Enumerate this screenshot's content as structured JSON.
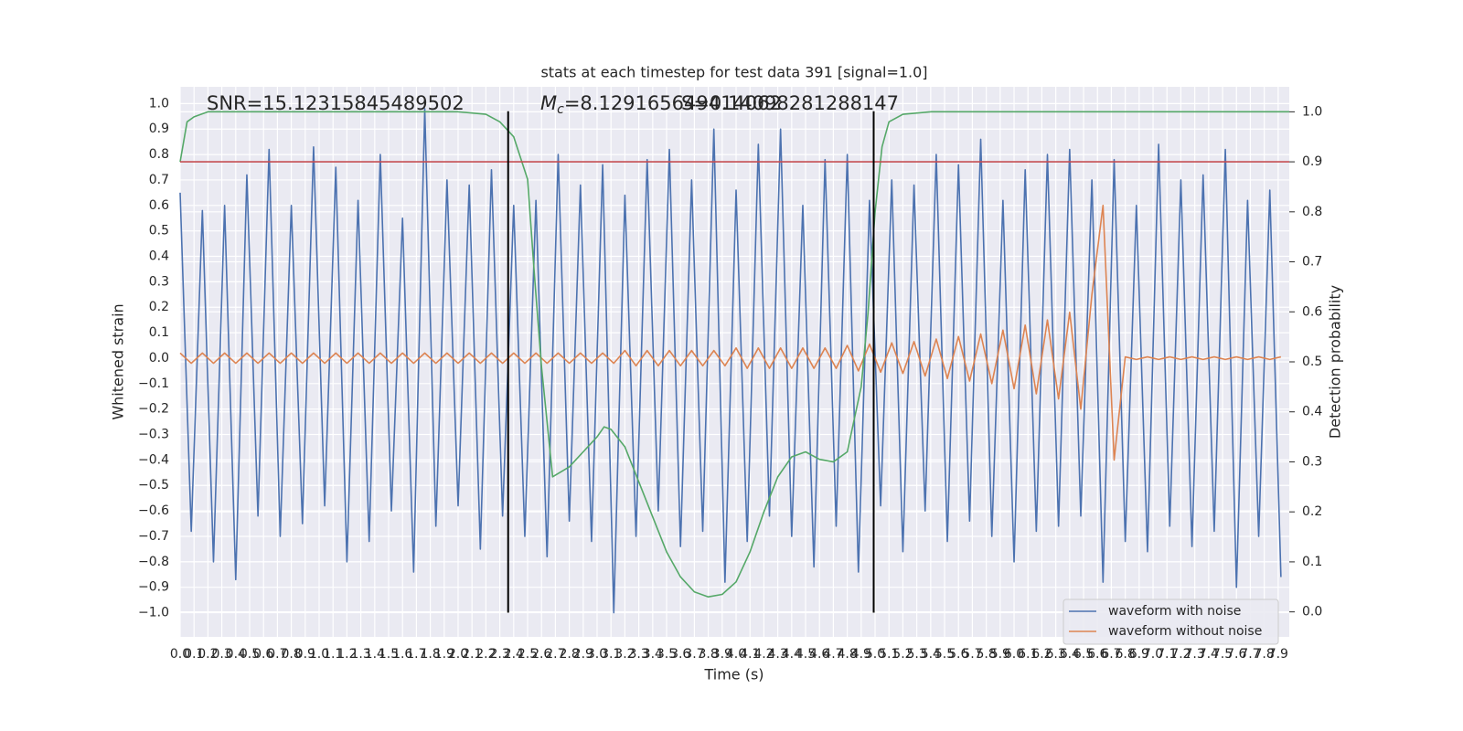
{
  "chart_data": {
    "type": "line",
    "title": "stats at each timestep for test data 391 [signal=1.0]",
    "x_label": "Time (s)",
    "y_label": "Whitened strain",
    "y2_label": "Detection probability",
    "annotations": [
      {
        "text": "SNR=15.12315845489502"
      },
      {
        "symbol": "M",
        "subscript": "c",
        "text": "=8.129165649414062"
      },
      {
        "text": "S=0.14098281288147"
      }
    ],
    "xlim": [
      0,
      7.98
    ],
    "ylim": [
      -1.095,
      1.066
    ],
    "y2lim": [
      -0.05,
      1.05
    ],
    "grid": true,
    "legend": "lower right",
    "background": "#eaeaf2",
    "xticks": [
      {
        "value": 0,
        "label": "0.0"
      },
      0.1,
      0.2,
      0.3,
      0.4,
      0.5,
      0.6,
      0.7,
      0.8,
      0.9,
      {
        "value": 1,
        "label": "1.0"
      },
      1.1,
      1.2,
      1.3,
      1.4,
      1.5,
      1.6,
      1.7,
      1.8,
      1.9,
      {
        "value": 2,
        "label": "2.0"
      },
      2.1,
      2.2,
      2.3,
      2.4,
      2.5,
      2.6,
      2.7,
      2.8,
      2.9,
      {
        "value": 3,
        "label": "3.0"
      },
      3.1,
      3.2,
      3.3,
      3.4,
      3.5,
      3.6,
      3.7,
      3.8,
      3.9,
      {
        "value": 4,
        "label": "4.0"
      },
      4.1,
      4.2,
      4.3,
      4.4,
      4.5,
      4.6,
      4.7,
      4.8,
      4.9,
      {
        "value": 5,
        "label": "5.0"
      },
      5.1,
      5.2,
      5.3,
      5.4,
      5.5,
      5.6,
      5.7,
      5.8,
      5.9,
      {
        "value": 6,
        "label": "6.0"
      },
      6.1,
      6.2,
      6.3,
      6.4,
      6.5,
      6.6,
      6.7,
      6.8,
      6.9,
      {
        "value": 7,
        "label": "7.0"
      },
      7.1,
      7.2,
      7.3,
      7.4,
      7.5,
      7.6,
      7.7,
      7.8,
      7.9
    ],
    "yticks": [
      {
        "value": -1.0,
        "label": "−1.0"
      },
      {
        "value": -0.9,
        "label": "−0.9"
      },
      {
        "value": -0.8,
        "label": "−0.8"
      },
      {
        "value": -0.7,
        "label": "−0.7"
      },
      {
        "value": -0.6,
        "label": "−0.6"
      },
      {
        "value": -0.5,
        "label": "−0.5"
      },
      {
        "value": -0.4,
        "label": "−0.4"
      },
      {
        "value": -0.3,
        "label": "−0.3"
      },
      {
        "value": -0.2,
        "label": "−0.2"
      },
      {
        "value": -0.1,
        "label": "−0.1"
      },
      {
        "value": 0,
        "label": "0.0"
      },
      0.1,
      0.2,
      0.3,
      0.4,
      0.5,
      0.6,
      0.7,
      0.8,
      0.9,
      {
        "value": 1,
        "label": "1.0"
      }
    ],
    "y2ticks": [
      {
        "value": 0,
        "label": "0.0"
      },
      0.1,
      0.2,
      0.3,
      0.4,
      0.5,
      0.6,
      0.7,
      0.8,
      0.9,
      {
        "value": 1,
        "label": "1.0"
      }
    ],
    "x": [
      0,
      0.08,
      0.16,
      0.24,
      0.32,
      0.4,
      0.48,
      0.56,
      0.64,
      0.72,
      0.8,
      0.88,
      0.96,
      1.04,
      1.12,
      1.2,
      1.28,
      1.36,
      1.44,
      1.52,
      1.6,
      1.68,
      1.76,
      1.84,
      1.92,
      2.0,
      2.08,
      2.16,
      2.24,
      2.32,
      2.4,
      2.48,
      2.56,
      2.64,
      2.72,
      2.8,
      2.88,
      2.96,
      3.04,
      3.12,
      3.2,
      3.28,
      3.36,
      3.44,
      3.52,
      3.6,
      3.68,
      3.76,
      3.84,
      3.92,
      4.0,
      4.08,
      4.16,
      4.24,
      4.32,
      4.4,
      4.48,
      4.56,
      4.64,
      4.72,
      4.8,
      4.88,
      4.96,
      5.04,
      5.12,
      5.2,
      5.28,
      5.36,
      5.44,
      5.52,
      5.6,
      5.68,
      5.76,
      5.84,
      5.92,
      6.0,
      6.08,
      6.16,
      6.24,
      6.32,
      6.4,
      6.48,
      6.56,
      6.64,
      6.72,
      6.8,
      6.88,
      6.96,
      7.04,
      7.12,
      7.2,
      7.28,
      7.36,
      7.44,
      7.52,
      7.6,
      7.68,
      7.76,
      7.84,
      7.92
    ],
    "series": [
      {
        "name": "waveform with noise",
        "color": "#4c72b0",
        "values": [
          0.65,
          -0.68,
          0.58,
          -0.8,
          0.6,
          -0.87,
          0.72,
          -0.62,
          0.82,
          -0.7,
          0.6,
          -0.65,
          0.83,
          -0.58,
          0.75,
          -0.8,
          0.62,
          -0.72,
          0.8,
          -0.6,
          0.55,
          -0.84,
          0.98,
          -0.66,
          0.7,
          -0.58,
          0.68,
          -0.75,
          0.74,
          -0.62,
          0.6,
          -0.7,
          0.62,
          -0.78,
          0.8,
          -0.64,
          0.68,
          -0.72,
          0.76,
          -1.0,
          0.64,
          -0.7,
          0.78,
          -0.6,
          0.82,
          -0.74,
          0.7,
          -0.68,
          0.9,
          -0.88,
          0.66,
          -0.72,
          0.84,
          -0.62,
          0.9,
          -0.7,
          0.6,
          -0.82,
          0.78,
          -0.66,
          0.8,
          -0.84,
          0.62,
          -0.58,
          0.7,
          -0.76,
          0.68,
          -0.6,
          0.8,
          -0.72,
          0.76,
          -0.64,
          0.86,
          -0.7,
          0.62,
          -0.8,
          0.74,
          -0.68,
          0.8,
          -0.66,
          0.82,
          -0.62,
          0.7,
          -0.88,
          0.78,
          -0.72,
          0.6,
          -0.76,
          0.84,
          -0.66,
          0.7,
          -0.74,
          0.72,
          -0.68,
          0.82,
          -0.9,
          0.62,
          -0.7,
          0.66,
          -0.86
        ]
      },
      {
        "name": "waveform without noise",
        "color": "#dd8452",
        "values": [
          0.02,
          -0.02,
          0.02,
          -0.02,
          0.02,
          -0.02,
          0.02,
          -0.02,
          0.02,
          -0.02,
          0.02,
          -0.02,
          0.02,
          -0.02,
          0.02,
          -0.02,
          0.02,
          -0.02,
          0.02,
          -0.02,
          0.02,
          -0.02,
          0.02,
          -0.02,
          0.02,
          -0.02,
          0.02,
          -0.02,
          0.02,
          -0.02,
          0.02,
          -0.02,
          0.02,
          -0.02,
          0.02,
          -0.02,
          0.02,
          -0.02,
          0.02,
          -0.02,
          0.03,
          -0.03,
          0.03,
          -0.03,
          0.03,
          -0.03,
          0.03,
          -0.03,
          0.03,
          -0.03,
          0.04,
          -0.04,
          0.04,
          -0.04,
          0.04,
          -0.04,
          0.04,
          -0.04,
          0.04,
          -0.04,
          0.05,
          -0.05,
          0.055,
          -0.055,
          0.06,
          -0.06,
          0.065,
          -0.07,
          0.075,
          -0.08,
          0.085,
          -0.09,
          0.095,
          -0.1,
          0.11,
          -0.12,
          0.13,
          -0.14,
          0.15,
          -0.16,
          0.18,
          -0.2,
          0.25,
          0.6,
          -0.4,
          0.005,
          -0.005,
          0.005,
          -0.005,
          0.005,
          -0.005,
          0.005,
          -0.005,
          0.005,
          -0.005,
          0.005,
          -0.005,
          0.005,
          -0.005,
          0.005
        ]
      },
      {
        "axis": "y2",
        "color": "#55a868",
        "x": [
          0,
          0.05,
          0.1,
          0.2,
          0.4,
          0.8,
          1.2,
          1.6,
          2.0,
          2.2,
          2.3,
          2.4,
          2.5,
          2.55,
          2.6,
          2.68,
          2.8,
          2.9,
          3.0,
          3.05,
          3.1,
          3.2,
          3.3,
          3.4,
          3.5,
          3.6,
          3.7,
          3.8,
          3.9,
          4.0,
          4.1,
          4.2,
          4.3,
          4.4,
          4.5,
          4.6,
          4.7,
          4.8,
          4.9,
          4.95,
          5.0,
          5.05,
          5.1,
          5.2,
          5.4,
          7.98
        ],
        "values": [
          0.9,
          0.98,
          0.99,
          1.0,
          1.0,
          1.0,
          1.0,
          1.0,
          1.0,
          0.995,
          0.98,
          0.95,
          0.865,
          0.67,
          0.49,
          0.27,
          0.29,
          0.32,
          0.35,
          0.37,
          0.365,
          0.33,
          0.26,
          0.19,
          0.12,
          0.07,
          0.04,
          0.03,
          0.035,
          0.06,
          0.12,
          0.2,
          0.27,
          0.31,
          0.32,
          0.305,
          0.3,
          0.32,
          0.45,
          0.6,
          0.8,
          0.93,
          0.98,
          0.995,
          1.0,
          1.0
        ]
      }
    ],
    "threshold": {
      "value": 0.9,
      "axis": "y2",
      "color": "#c44e52"
    },
    "vlines": {
      "x": [
        2.36,
        4.99
      ],
      "ymin": -1.0,
      "ymax": 0.97,
      "color": "#000000"
    }
  }
}
